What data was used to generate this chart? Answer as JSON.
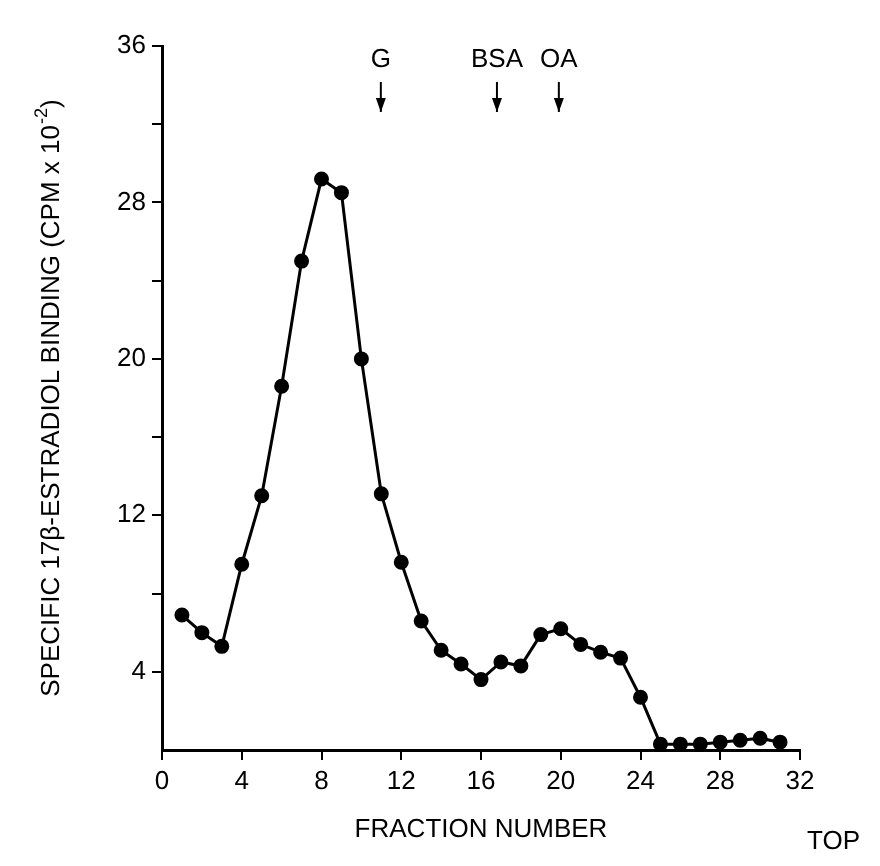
{
  "chart_data": {
    "type": "line",
    "xlabel": "FRACTION NUMBER",
    "ylabel": "SPECIFIC 17β-ESTRADIOL BINDING (CPM x 10$^{-2}$)",
    "x": [
      1,
      2,
      3,
      4,
      5,
      6,
      7,
      8,
      9,
      10,
      11,
      12,
      13,
      14,
      15,
      16,
      17,
      18,
      19,
      20,
      21,
      22,
      23,
      24,
      25,
      26,
      27,
      28,
      29,
      30,
      31
    ],
    "series": [
      {
        "color": "#000000",
        "values": [
          6.9,
          6.0,
          5.3,
          9.5,
          13.0,
          18.6,
          25.0,
          29.2,
          28.5,
          20.0,
          13.1,
          9.6,
          6.6,
          5.1,
          4.4,
          3.6,
          4.5,
          4.3,
          5.9,
          6.2,
          5.4,
          5.0,
          4.7,
          2.7,
          0.3,
          0.3,
          0.3,
          0.4,
          0.5,
          0.6,
          0.4
        ]
      }
    ],
    "xlim": [
      0,
      32
    ],
    "xticks": [
      0,
      4,
      8,
      12,
      16,
      20,
      24,
      28,
      32
    ],
    "ylim": [
      0,
      36
    ],
    "yticks": [
      4,
      {
        "value": 8,
        "label": null
      },
      12,
      {
        "value": 16,
        "label": null
      },
      20,
      {
        "value": 24,
        "label": null
      },
      28,
      {
        "value": 32,
        "label": null
      },
      36
    ],
    "annotations": [
      "G",
      "BSA",
      "OA",
      "TOP"
    ],
    "grid": false,
    "legend": false,
    "marker": "circle",
    "line_style": "solid"
  }
}
